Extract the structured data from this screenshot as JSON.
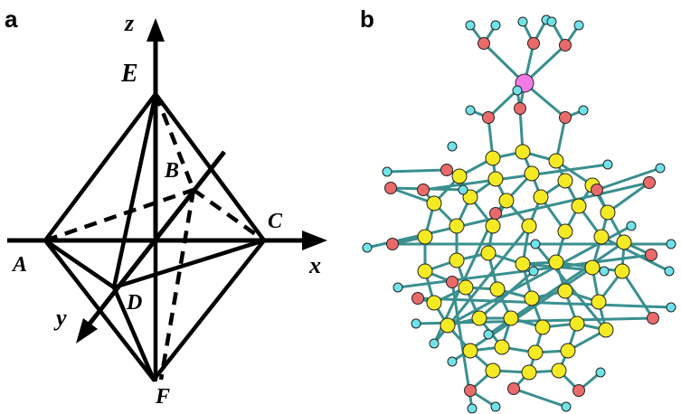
{
  "panel_a": {
    "letter": "a",
    "axes": {
      "z": "z",
      "x": "x",
      "y": "y"
    },
    "vertices": {
      "E": "E",
      "A": "A",
      "B": "B",
      "C": "C",
      "D": "D",
      "F": "F"
    }
  },
  "panel_b": {
    "letter": "b"
  },
  "colors": {
    "carbon": "#f3ea24",
    "oxygen": "#ea6a6a",
    "hydrogen": "#6fe3e8",
    "metal": "#f07ae6",
    "bond": "#3a8f8f"
  }
}
